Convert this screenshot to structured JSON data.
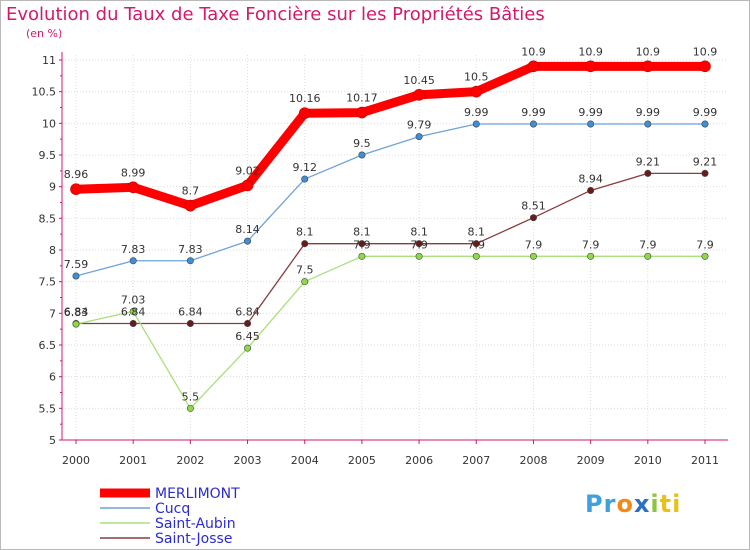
{
  "chart_data": {
    "type": "line",
    "title": "Evolution du Taux de Taxe Foncière sur les Propriétés Bâties",
    "unit_label": "(en %)",
    "categories": [
      "2000",
      "2001",
      "2002",
      "2003",
      "2004",
      "2005",
      "2006",
      "2007",
      "2008",
      "2009",
      "2010",
      "2011"
    ],
    "ylim": [
      5,
      11
    ],
    "yticks": [
      "5",
      "5.5",
      "6",
      "6.5",
      "7",
      "7.5",
      "8",
      "8.5",
      "9",
      "9.5",
      "10",
      "10.5",
      "11"
    ],
    "grid": true,
    "legend_position": "bottom-left",
    "series": [
      {
        "name": "MERLIMONT",
        "values": [
          8.96,
          8.99,
          8.7,
          9.02,
          10.16,
          10.17,
          10.45,
          10.5,
          10.9,
          10.9,
          10.9,
          10.9
        ],
        "labels": [
          "8.96",
          "8.99",
          "8.7",
          "9.02",
          "10.16",
          "10.17",
          "10.45",
          "10.5",
          "10.9",
          "10.9",
          "10.9",
          "10.9"
        ],
        "color": "#ff0000",
        "marker": "#ff0000"
      },
      {
        "name": "Cucq",
        "values": [
          7.59,
          7.83,
          7.83,
          8.14,
          9.12,
          9.5,
          9.79,
          9.99,
          9.99,
          9.99,
          9.99,
          9.99
        ],
        "labels": [
          "7.59",
          "7.83",
          "7.83",
          "8.14",
          "9.12",
          "9.5",
          "9.79",
          "9.99",
          "9.99",
          "9.99",
          "9.99",
          "9.99"
        ],
        "color": "#6fa4d8",
        "marker": "#3f8fd6"
      },
      {
        "name": "Saint-Aubin",
        "values": [
          6.83,
          7.03,
          5.5,
          6.45,
          7.5,
          7.9,
          7.9,
          7.9,
          7.9,
          7.9,
          7.9,
          7.9
        ],
        "labels": [
          "6.83",
          "7.03",
          "5.5",
          "6.45",
          "7.5",
          "7.9",
          "7.9",
          "7.9",
          "7.9",
          "7.9",
          "7.9",
          "7.9"
        ],
        "color": "#a8e07a",
        "marker": "#8fd84a"
      },
      {
        "name": "Saint-Josse",
        "values": [
          6.84,
          6.84,
          6.84,
          6.84,
          8.1,
          8.1,
          8.1,
          8.1,
          8.51,
          8.94,
          9.21,
          9.21
        ],
        "labels": [
          "6.84",
          "6.84",
          "6.84",
          "6.84",
          "8.1",
          "8.1",
          "8.1",
          "8.1",
          "8.51",
          "8.94",
          "9.21",
          "9.21"
        ],
        "color": "#8a3b3b",
        "marker": "#6b1a1a"
      }
    ]
  },
  "logo": {
    "text_parts": [
      "Pr",
      "o",
      "x",
      "i",
      "ti"
    ]
  }
}
